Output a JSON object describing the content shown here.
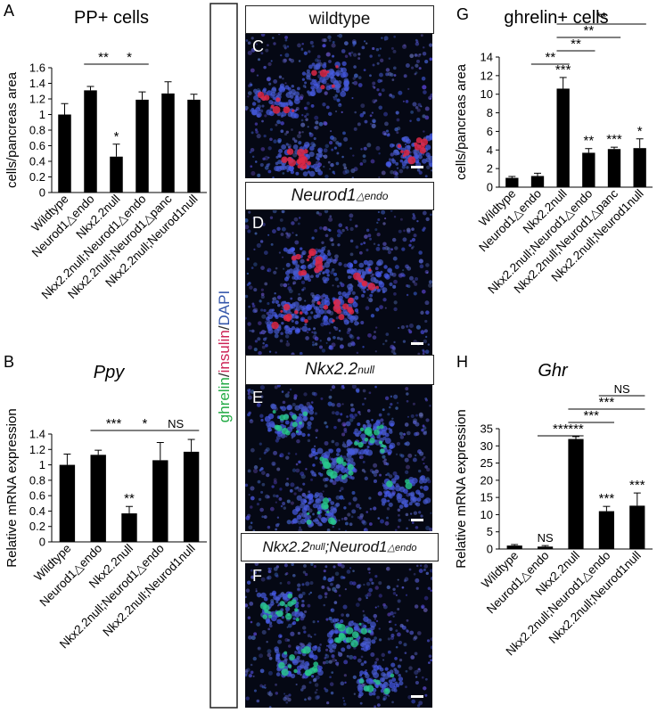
{
  "panels": {
    "A": {
      "letter": "A",
      "title": "PP+ cells"
    },
    "B": {
      "letter": "B",
      "title": "Ppy"
    },
    "G": {
      "letter": "G",
      "title": "ghrelin+ cells"
    },
    "H": {
      "letter": "H",
      "title": "Ghr"
    }
  },
  "micrographs": [
    {
      "letter": "C",
      "label": "wildtype"
    },
    {
      "letter": "D",
      "label": "Neurod1",
      "sup": "△endo"
    },
    {
      "letter": "E",
      "label": "Nkx2.2",
      "sup": "null"
    },
    {
      "letter": "F",
      "label": "Nkx2.2",
      "sup": "null",
      "label2": ";Neurod1",
      "sup2": "△endo"
    }
  ],
  "stain_legend": [
    {
      "text": "ghrelin",
      "color": "#22aa44"
    },
    {
      "text": "/",
      "color": "#333333"
    },
    {
      "text": "insulin",
      "color": "#cc2255"
    },
    {
      "text": "/",
      "color": "#333333"
    },
    {
      "text": "DAPI",
      "color": "#3355aa"
    }
  ],
  "chart_data": [
    {
      "id": "A",
      "type": "bar",
      "ylabel": "cells/pancreas area",
      "ylim": [
        0,
        1.6
      ],
      "yticks": [
        "0",
        "0.2",
        "0.4",
        "0.6",
        "0.8",
        "1",
        "1.2",
        "1.4",
        "1.6"
      ],
      "categories": [
        "Wildtype",
        "Neurod1△endo",
        "Nkx2.2null",
        "Nkx2.2null;Neurod1△endo",
        "Nkx2.2null;Neurod1△panc",
        "Nkx2.2null;Neurod1null"
      ],
      "values": [
        1.0,
        1.31,
        0.46,
        1.19,
        1.27,
        1.19
      ],
      "errors": [
        0.14,
        0.05,
        0.16,
        0.1,
        0.15,
        0.07
      ],
      "bar_labels": [
        "",
        "",
        "*",
        "",
        "",
        ""
      ],
      "brackets": [
        {
          "from": 1,
          "to": 2,
          "label": "**"
        },
        {
          "from": 2,
          "to": 3,
          "label": "*"
        }
      ]
    },
    {
      "id": "B",
      "type": "bar",
      "ylabel": "Relative mRNA expression",
      "ylim": [
        0,
        1.4
      ],
      "yticks": [
        "0",
        "0.2",
        "0.4",
        "0.6",
        "0.8",
        "1",
        "1.2",
        "1.4"
      ],
      "categories": [
        "Wildtype",
        "Neurod1△endo",
        "Nkx2.2null",
        "Nkx2.2null;Neurod1△endo",
        "Nkx2.2null;Neurod1null"
      ],
      "values": [
        1.0,
        1.13,
        0.37,
        1.06,
        1.17
      ],
      "errors": [
        0.14,
        0.06,
        0.09,
        0.23,
        0.16
      ],
      "bar_labels": [
        "",
        "",
        "**",
        "",
        ""
      ],
      "brackets": [
        {
          "from": 1,
          "to": 2,
          "label": "***"
        },
        {
          "from": 2,
          "to": 3,
          "label": "*"
        },
        {
          "from": 3,
          "to": 4,
          "label": "NS"
        }
      ]
    },
    {
      "id": "G",
      "type": "bar",
      "ylabel": "cells/pancreas area",
      "ylim": [
        0,
        14
      ],
      "yticks": [
        "0",
        "2",
        "4",
        "6",
        "8",
        "10",
        "12",
        "14"
      ],
      "categories": [
        "Wildtype",
        "Neurod1△endo",
        "Nkx2.2null",
        "Nkx2.2null;Neurod1△endo",
        "Nkx2.2null;Neurod1△panc",
        "Nkx2.2null;Neurod1null"
      ],
      "values": [
        1.0,
        1.2,
        10.6,
        3.7,
        4.1,
        4.2
      ],
      "errors": [
        0.15,
        0.3,
        1.2,
        0.45,
        0.2,
        1.0
      ],
      "bar_labels": [
        "",
        "",
        "***",
        "**",
        "***",
        "*"
      ],
      "brackets": [
        {
          "from": 1,
          "to": 2,
          "label": "**"
        },
        {
          "from": 2,
          "to": 3,
          "label": "**"
        },
        {
          "from": 2,
          "to": 4,
          "label": "**"
        },
        {
          "from": 2,
          "to": 5,
          "label": "**"
        }
      ]
    },
    {
      "id": "H",
      "type": "bar",
      "ylabel": "Relative mRNA expression",
      "ylim": [
        0,
        35
      ],
      "yticks": [
        "0",
        "5",
        "10",
        "15",
        "20",
        "25",
        "30",
        "35"
      ],
      "categories": [
        "Wildtype",
        "Neurod1△endo",
        "Nkx2.2null",
        "Nkx2.2null;Neurod1△endo",
        "Nkx2.2null;Neurod1null"
      ],
      "values": [
        1.0,
        0.7,
        32.0,
        11.0,
        12.6
      ],
      "errors": [
        0.3,
        0.3,
        0.7,
        1.4,
        3.7
      ],
      "bar_labels": [
        "",
        "NS",
        "***",
        "***",
        "***"
      ],
      "brackets": [
        {
          "from": 1,
          "to": 2,
          "label": "***"
        },
        {
          "from": 2,
          "to": 3,
          "label": "***"
        },
        {
          "from": 2,
          "to": 4,
          "label": "***"
        },
        {
          "from": 3,
          "to": 4,
          "label": "NS"
        }
      ]
    }
  ]
}
